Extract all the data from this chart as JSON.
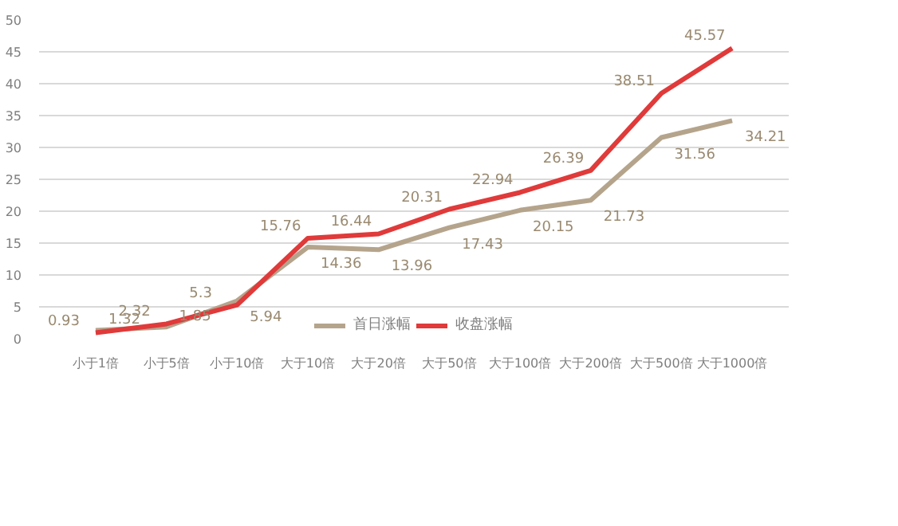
{
  "chart_data": {
    "type": "line",
    "categories": [
      "小于1倍",
      "小于5倍",
      "小于10倍",
      "大于10倍",
      "大于20倍",
      "大于50倍",
      "大于100倍",
      "大于200倍",
      "大于500倍",
      "大于1000倍"
    ],
    "series": [
      {
        "name": "首日涨幅",
        "color": "#b5a48c",
        "values": [
          1.32,
          1.85,
          5.94,
          14.36,
          13.96,
          17.43,
          20.15,
          21.73,
          31.56,
          34.21
        ]
      },
      {
        "name": "收盘涨幅",
        "color": "#e03a3a",
        "values": [
          0.93,
          2.32,
          5.3,
          15.76,
          16.44,
          20.31,
          22.94,
          26.39,
          38.51,
          45.57
        ]
      }
    ],
    "ylim": [
      0,
      50
    ],
    "yticks": [
      0,
      5,
      10,
      15,
      20,
      25,
      30,
      35,
      40,
      45,
      50
    ],
    "grid": "y",
    "legend": "bottom",
    "data_labels": true,
    "marker": "none",
    "line_style": "solid"
  }
}
